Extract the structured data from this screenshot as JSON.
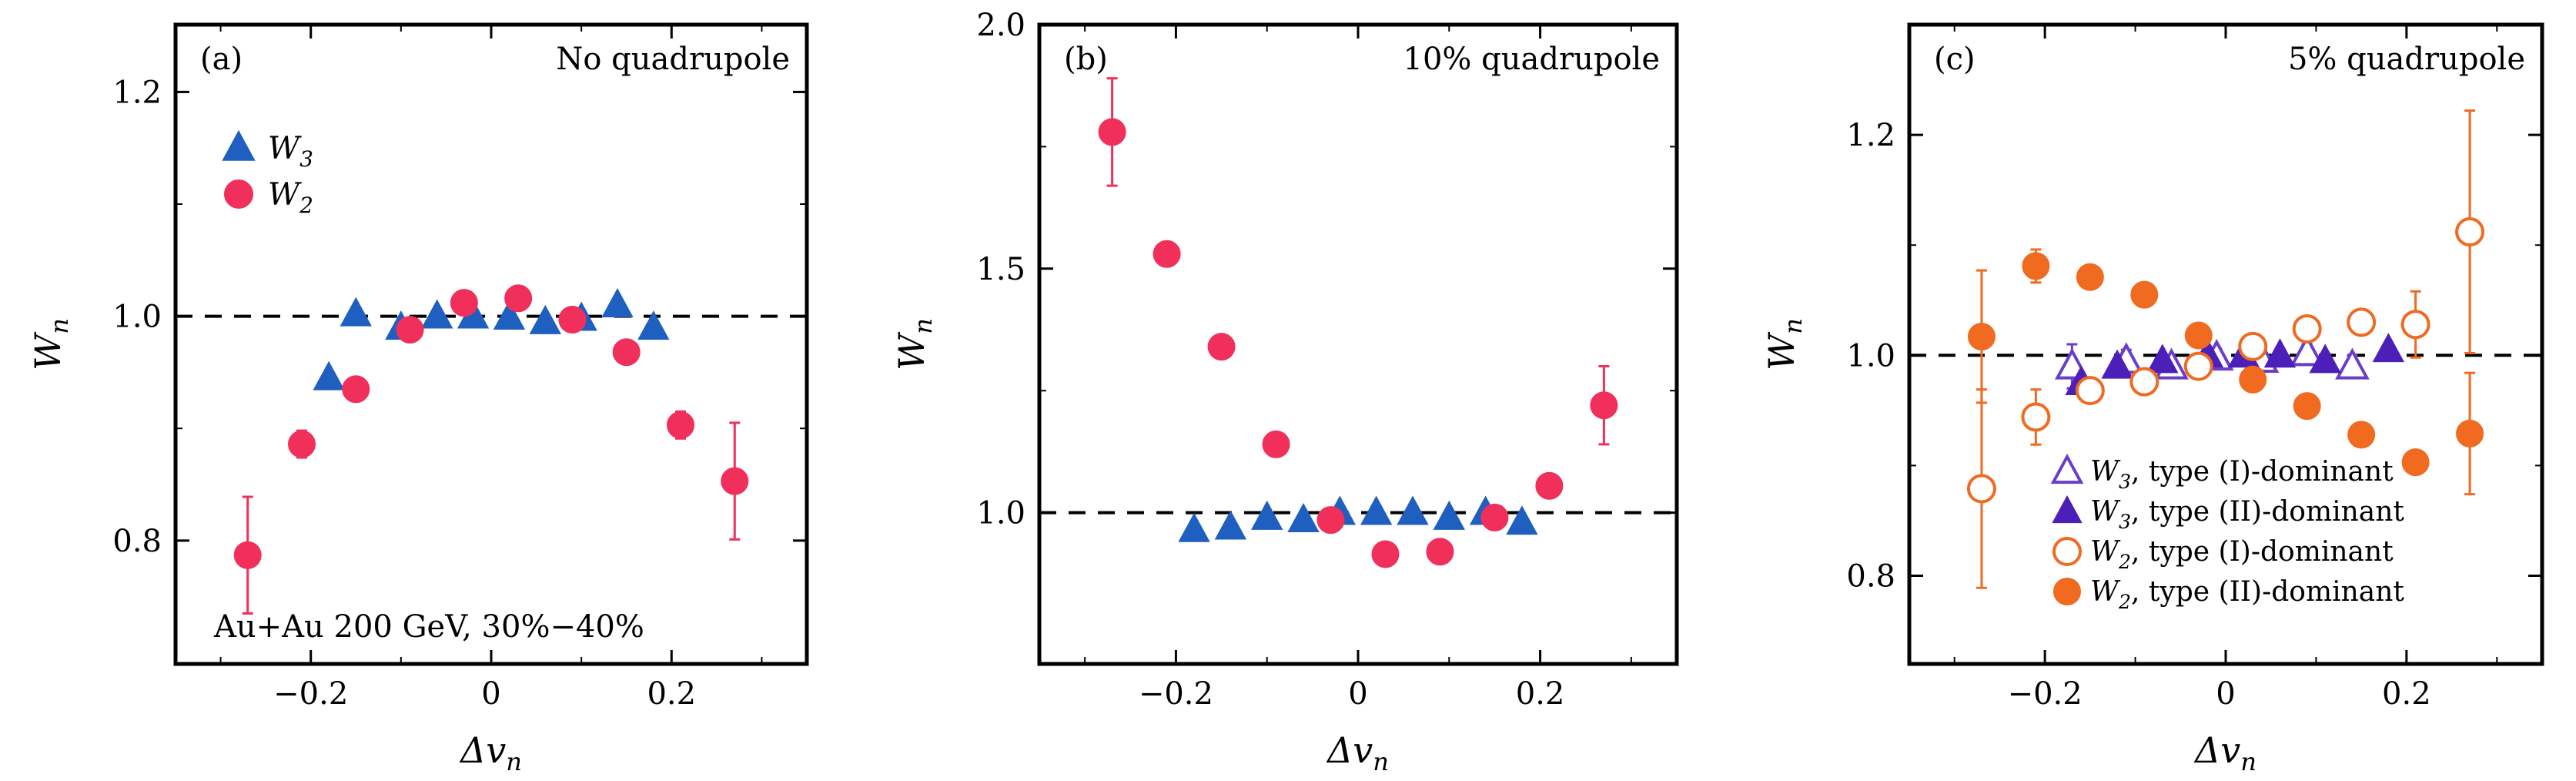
{
  "chart_data": [
    {
      "type": "scatter",
      "panel_label": "(a)",
      "title": "No quadrupole",
      "annotation": "Au+Au 200 GeV, 30%−40%",
      "xlabel": {
        "sym": "Δv",
        "sub": "n"
      },
      "ylabel": {
        "sym": "W",
        "sub": "n"
      },
      "xlim": [
        -0.35,
        0.35
      ],
      "ylim": [
        0.69,
        1.26
      ],
      "xticks": [
        {
          "v": -0.2,
          "label": "−0.2"
        },
        {
          "v": 0,
          "label": "0"
        },
        {
          "v": 0.2,
          "label": "0.2"
        }
      ],
      "yticks": [
        {
          "v": 0.8,
          "label": "0.8"
        },
        {
          "v": 1.0,
          "label": "1.0"
        },
        {
          "v": 1.2,
          "label": "1.2"
        }
      ],
      "reference_line": 1.0,
      "legend_position": "top-left",
      "series": [
        {
          "name": "W",
          "sub": "3",
          "marker": "triangle",
          "filled": true,
          "color": "#1f5fbf",
          "x": [
            -0.18,
            -0.15,
            -0.1,
            -0.06,
            -0.02,
            0.02,
            0.06,
            0.1,
            0.14,
            0.18
          ],
          "y": [
            0.945,
            1.002,
            0.99,
            1.0,
            1.0,
            0.999,
            0.995,
            0.998,
            1.01,
            0.99
          ],
          "err": [
            0,
            0,
            0,
            0,
            0,
            0,
            0,
            0,
            0,
            0
          ]
        },
        {
          "name": "W",
          "sub": "2",
          "marker": "circle",
          "filled": true,
          "color": "#f0305a",
          "x": [
            -0.27,
            -0.21,
            -0.15,
            -0.09,
            -0.03,
            0.03,
            0.09,
            0.15,
            0.21,
            0.27
          ],
          "y": [
            0.787,
            0.886,
            0.935,
            0.988,
            1.012,
            1.016,
            0.997,
            0.968,
            0.903,
            0.853
          ],
          "err": [
            0.052,
            0.012,
            0.008,
            0.006,
            0.006,
            0.006,
            0.006,
            0.006,
            0.012,
            0.052
          ]
        }
      ]
    },
    {
      "type": "scatter",
      "panel_label": "(b)",
      "title": "10% quadrupole",
      "xlabel": {
        "sym": "Δv",
        "sub": "n"
      },
      "ylabel": {
        "sym": "W",
        "sub": "n"
      },
      "xlim": [
        -0.35,
        0.35
      ],
      "ylim": [
        0.69,
        2.0
      ],
      "xticks": [
        {
          "v": -0.2,
          "label": "−0.2"
        },
        {
          "v": 0,
          "label": "0"
        },
        {
          "v": 0.2,
          "label": "0.2"
        }
      ],
      "yticks": [
        {
          "v": 1.0,
          "label": "1.0"
        },
        {
          "v": 1.5,
          "label": "1.5"
        },
        {
          "v": 2.0,
          "label": "2.0"
        }
      ],
      "reference_line": 1.0,
      "series": [
        {
          "name": "W",
          "sub": "3",
          "marker": "triangle",
          "filled": true,
          "color": "#1f5fbf",
          "x": [
            -0.18,
            -0.14,
            -0.1,
            -0.06,
            -0.02,
            0.02,
            0.06,
            0.1,
            0.14,
            0.18
          ],
          "y": [
            0.965,
            0.97,
            0.99,
            0.985,
            1.0,
            1.0,
            1.0,
            0.99,
            1.0,
            0.98
          ],
          "err": [
            0,
            0,
            0,
            0,
            0,
            0,
            0,
            0,
            0,
            0
          ]
        },
        {
          "name": "W",
          "sub": "2",
          "marker": "circle",
          "filled": true,
          "color": "#f0305a",
          "x": [
            -0.27,
            -0.21,
            -0.15,
            -0.09,
            -0.03,
            0.03,
            0.09,
            0.15,
            0.21,
            0.27
          ],
          "y": [
            1.78,
            1.53,
            1.34,
            1.14,
            0.985,
            0.915,
            0.92,
            0.99,
            1.055,
            1.22
          ],
          "err": [
            0.11,
            0.01,
            0.01,
            0.005,
            0.005,
            0.005,
            0.005,
            0.005,
            0.01,
            0.08
          ]
        }
      ]
    },
    {
      "type": "scatter",
      "panel_label": "(c)",
      "title": "5% quadrupole",
      "xlabel": {
        "sym": "Δv",
        "sub": "n"
      },
      "ylabel": {
        "sym": "W",
        "sub": "n"
      },
      "xlim": [
        -0.35,
        0.35
      ],
      "ylim": [
        0.72,
        1.3
      ],
      "xticks": [
        {
          "v": -0.2,
          "label": "−0.2"
        },
        {
          "v": 0,
          "label": "0"
        },
        {
          "v": 0.2,
          "label": "0.2"
        }
      ],
      "yticks": [
        {
          "v": 0.8,
          "label": "0.8"
        },
        {
          "v": 1.0,
          "label": "1.0"
        },
        {
          "v": 1.2,
          "label": "1.2"
        }
      ],
      "reference_line": 1.0,
      "legend_position": "bottom-right",
      "series": [
        {
          "name": "W",
          "sub": "3",
          "desc": ", type (I)-dominant",
          "marker": "triangle",
          "filled": false,
          "color": "#6a3fc7",
          "x": [
            -0.17,
            -0.11,
            -0.06,
            -0.01,
            0.04,
            0.09,
            0.14
          ],
          "y": [
            0.99,
            0.995,
            0.99,
            0.998,
            0.996,
            1.002,
            0.99
          ],
          "err": [
            0.02,
            0.01,
            0.008,
            0.008,
            0.008,
            0.008,
            0.01
          ]
        },
        {
          "name": "W",
          "sub": "3",
          "desc": ", type (II)-dominant",
          "marker": "triangle",
          "filled": true,
          "color": "#4b1fb8",
          "x": [
            -0.16,
            -0.12,
            -0.07,
            -0.02,
            0.02,
            0.06,
            0.11,
            0.18
          ],
          "y": [
            0.975,
            0.99,
            0.995,
            1.0,
            1.0,
            1.0,
            0.995,
            1.005
          ],
          "err": [
            0,
            0,
            0,
            0,
            0,
            0,
            0,
            0
          ]
        },
        {
          "name": "W",
          "sub": "2",
          "desc": ", type (I)-dominant",
          "marker": "circle",
          "filled": false,
          "color": "#f06a20",
          "x": [
            -0.27,
            -0.21,
            -0.15,
            -0.09,
            -0.03,
            0.03,
            0.09,
            0.15,
            0.21,
            0.27
          ],
          "y": [
            0.879,
            0.944,
            0.968,
            0.976,
            0.99,
            1.008,
            1.024,
            1.03,
            1.028,
            1.112
          ],
          "err": [
            0.09,
            0.025,
            0.01,
            0.008,
            0.008,
            0.008,
            0.008,
            0.008,
            0.03,
            0.11
          ]
        },
        {
          "name": "W",
          "sub": "2",
          "desc": ", type (II)-dominant",
          "marker": "circle",
          "filled": true,
          "color": "#f06a20",
          "x": [
            -0.27,
            -0.21,
            -0.15,
            -0.09,
            -0.03,
            0.03,
            0.09,
            0.15,
            0.21,
            0.27
          ],
          "y": [
            1.017,
            1.081,
            1.071,
            1.055,
            1.018,
            0.978,
            0.954,
            0.928,
            0.903,
            0.929
          ],
          "err": [
            0.06,
            0.015,
            0.008,
            0.006,
            0.006,
            0.006,
            0.006,
            0.006,
            0.01,
            0.055
          ]
        }
      ]
    }
  ]
}
